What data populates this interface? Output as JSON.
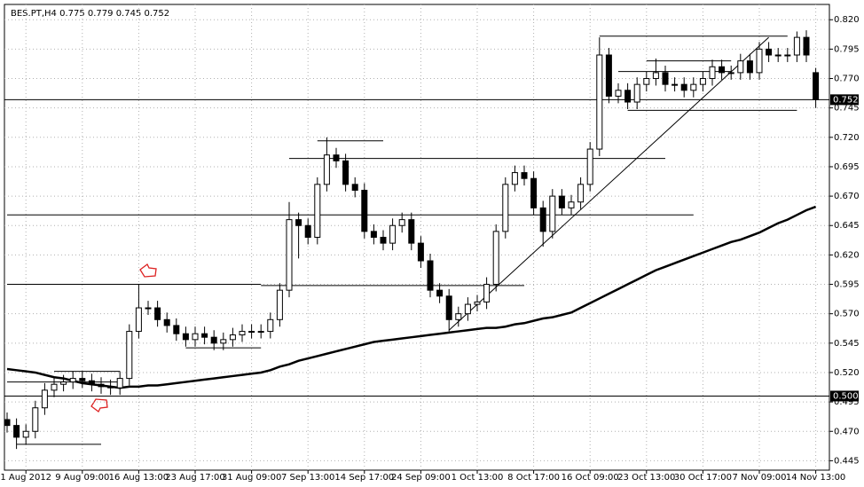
{
  "chart_data": {
    "type": "candlestick",
    "title": "BES.PT,H4  0.775 0.779 0.745 0.752",
    "categories": [
      null,
      null,
      "1 Aug 2012",
      null,
      null,
      null,
      null,
      null,
      "9 Aug 09:00",
      null,
      null,
      null,
      null,
      null,
      "16 Aug 13:00",
      null,
      null,
      null,
      null,
      null,
      "23 Aug 17:00",
      null,
      null,
      null,
      null,
      null,
      "31 Aug 09:00",
      null,
      null,
      null,
      null,
      null,
      "7 Sep 13:00",
      null,
      null,
      null,
      null,
      null,
      "14 Sep 17:00",
      null,
      null,
      null,
      null,
      null,
      "24 Sep 09:00",
      null,
      null,
      null,
      null,
      null,
      "1 Oct 13:00",
      null,
      null,
      null,
      null,
      null,
      "8 Oct 17:00",
      null,
      null,
      null,
      null,
      null,
      "16 Oct 09:00",
      null,
      null,
      null,
      null,
      null,
      "23 Oct 13:00",
      null,
      null,
      null,
      null,
      null,
      "30 Oct 17:00",
      null,
      null,
      null,
      null,
      null,
      "7 Nov 09:00",
      null,
      null,
      null,
      null,
      null,
      "14 Nov 13:00"
    ],
    "open": [
      0.48,
      0.475,
      0.465,
      0.47,
      0.49,
      0.505,
      0.51,
      0.512,
      0.515,
      0.513,
      0.51,
      0.508,
      0.507,
      0.515,
      0.555,
      0.575,
      0.575,
      0.565,
      0.56,
      0.553,
      0.548,
      0.553,
      0.55,
      0.545,
      0.548,
      0.552,
      0.555,
      0.555,
      0.555,
      0.565,
      0.59,
      0.65,
      0.645,
      0.635,
      0.68,
      0.705,
      0.7,
      0.68,
      0.675,
      0.64,
      0.635,
      0.63,
      0.645,
      0.65,
      0.63,
      0.615,
      0.59,
      0.585,
      0.565,
      0.57,
      0.578,
      0.58,
      0.595,
      0.64,
      0.68,
      0.69,
      0.685,
      0.66,
      0.64,
      0.67,
      0.66,
      0.665,
      0.68,
      0.71,
      0.79,
      0.755,
      0.76,
      0.75,
      0.765,
      0.77,
      0.775,
      0.765,
      0.765,
      0.76,
      0.765,
      0.77,
      0.78,
      0.775,
      0.775,
      0.785,
      0.775,
      0.795,
      0.79,
      0.79,
      0.79,
      0.805,
      0.775
    ],
    "high": [
      0.486,
      0.481,
      0.476,
      0.496,
      0.511,
      0.516,
      0.518,
      0.521,
      0.521,
      0.519,
      0.516,
      0.514,
      0.521,
      0.561,
      0.595,
      0.581,
      0.581,
      0.571,
      0.566,
      0.559,
      0.559,
      0.559,
      0.556,
      0.554,
      0.558,
      0.561,
      0.561,
      0.561,
      0.571,
      0.596,
      0.665,
      0.656,
      0.651,
      0.686,
      0.72,
      0.711,
      0.706,
      0.686,
      0.681,
      0.646,
      0.641,
      0.651,
      0.656,
      0.656,
      0.636,
      0.621,
      0.596,
      0.591,
      0.576,
      0.584,
      0.586,
      0.601,
      0.646,
      0.686,
      0.696,
      0.696,
      0.691,
      0.666,
      0.676,
      0.676,
      0.671,
      0.686,
      0.716,
      0.805,
      0.796,
      0.766,
      0.766,
      0.771,
      0.776,
      0.787,
      0.781,
      0.771,
      0.771,
      0.771,
      0.776,
      0.786,
      0.786,
      0.781,
      0.791,
      0.791,
      0.801,
      0.801,
      0.796,
      0.796,
      0.81,
      0.811,
      0.779
    ],
    "low": [
      0.469,
      0.455,
      0.459,
      0.464,
      0.484,
      0.499,
      0.504,
      0.506,
      0.507,
      0.504,
      0.502,
      0.501,
      0.501,
      0.509,
      0.549,
      0.569,
      0.559,
      0.554,
      0.547,
      0.542,
      0.542,
      0.544,
      0.539,
      0.539,
      0.542,
      0.546,
      0.549,
      0.549,
      0.549,
      0.559,
      0.584,
      0.617,
      0.629,
      0.629,
      0.674,
      0.694,
      0.674,
      0.669,
      0.634,
      0.629,
      0.624,
      0.624,
      0.639,
      0.624,
      0.609,
      0.584,
      0.579,
      0.555,
      0.559,
      0.564,
      0.572,
      0.574,
      0.589,
      0.634,
      0.674,
      0.679,
      0.654,
      0.627,
      0.634,
      0.654,
      0.654,
      0.659,
      0.674,
      0.704,
      0.749,
      0.749,
      0.744,
      0.744,
      0.759,
      0.764,
      0.759,
      0.759,
      0.754,
      0.754,
      0.759,
      0.764,
      0.769,
      0.769,
      0.769,
      0.769,
      0.769,
      0.784,
      0.784,
      0.784,
      0.784,
      0.784,
      0.745
    ],
    "close": [
      0.475,
      0.465,
      0.47,
      0.49,
      0.505,
      0.51,
      0.512,
      0.515,
      0.513,
      0.51,
      0.508,
      0.507,
      0.515,
      0.555,
      0.575,
      0.575,
      0.565,
      0.56,
      0.553,
      0.548,
      0.553,
      0.55,
      0.545,
      0.548,
      0.552,
      0.555,
      0.555,
      0.555,
      0.565,
      0.59,
      0.65,
      0.645,
      0.635,
      0.68,
      0.705,
      0.7,
      0.68,
      0.675,
      0.64,
      0.635,
      0.63,
      0.645,
      0.65,
      0.63,
      0.615,
      0.59,
      0.585,
      0.565,
      0.57,
      0.578,
      0.58,
      0.595,
      0.64,
      0.68,
      0.69,
      0.685,
      0.66,
      0.64,
      0.67,
      0.66,
      0.665,
      0.68,
      0.71,
      0.79,
      0.755,
      0.76,
      0.75,
      0.765,
      0.77,
      0.775,
      0.765,
      0.765,
      0.76,
      0.765,
      0.77,
      0.78,
      0.775,
      0.775,
      0.785,
      0.775,
      0.795,
      0.79,
      0.79,
      0.79,
      0.805,
      0.79,
      0.752
    ],
    "ma": {
      "color": "#000000",
      "values": [
        0.523,
        0.522,
        0.521,
        0.52,
        0.518,
        0.516,
        0.515,
        0.513,
        0.511,
        0.51,
        0.509,
        0.508,
        0.507,
        0.508,
        0.508,
        0.509,
        0.509,
        0.51,
        0.511,
        0.512,
        0.513,
        0.514,
        0.515,
        0.516,
        0.517,
        0.518,
        0.519,
        0.52,
        0.522,
        0.525,
        0.527,
        0.53,
        0.532,
        0.534,
        0.536,
        0.538,
        0.54,
        0.542,
        0.544,
        0.546,
        0.547,
        0.548,
        0.549,
        0.55,
        0.551,
        0.552,
        0.553,
        0.554,
        0.555,
        0.556,
        0.557,
        0.558,
        0.558,
        0.559,
        0.561,
        0.562,
        0.564,
        0.566,
        0.567,
        0.569,
        0.571,
        0.575,
        0.579,
        0.583,
        0.587,
        0.591,
        0.595,
        0.599,
        0.603,
        0.607,
        0.61,
        0.613,
        0.616,
        0.619,
        0.622,
        0.625,
        0.628,
        0.631,
        0.633,
        0.636,
        0.639,
        0.643,
        0.647,
        0.65,
        0.654,
        0.658,
        0.661
      ]
    },
    "segments": [
      {
        "x": [
          1,
          10
        ],
        "values": [
          0.459,
          0.459
        ]
      },
      {
        "x": [
          0,
          12
        ],
        "values": [
          0.512,
          0.512
        ]
      },
      {
        "x": [
          5,
          12
        ],
        "values": [
          0.521,
          0.521
        ]
      },
      {
        "x": [
          0,
          27
        ],
        "values": [
          0.595,
          0.595
        ]
      },
      {
        "x": [
          27,
          55
        ],
        "values": [
          0.594,
          0.594
        ]
      },
      {
        "x": [
          19,
          27
        ],
        "values": [
          0.541,
          0.541
        ]
      },
      {
        "x": [
          0,
          73
        ],
        "values": [
          0.654,
          0.654
        ]
      },
      {
        "x": [
          30,
          70
        ],
        "values": [
          0.702,
          0.702
        ]
      },
      {
        "x": [
          33,
          40
        ],
        "values": [
          0.717,
          0.717
        ]
      },
      {
        "x": [
          66,
          84
        ],
        "values": [
          0.743,
          0.743
        ]
      },
      {
        "x": [
          63,
          83
        ],
        "values": [
          0.806,
          0.806
        ]
      },
      {
        "x": [
          65,
          77
        ],
        "values": [
          0.776,
          0.776
        ]
      },
      {
        "x": [
          68,
          77
        ],
        "values": [
          0.785,
          0.785
        ]
      },
      {
        "x": [
          47,
          81
        ],
        "values": [
          0.556,
          0.805
        ]
      }
    ],
    "price_labels": [
      {
        "value": 0.752,
        "label": "0.752"
      },
      {
        "value": 0.5,
        "label": "0.500"
      }
    ],
    "bull_color": "#ffffff",
    "bear_color": "#000000",
    "ylim": [
      0.437,
      0.833
    ],
    "yticks": [
      {
        "value": 0.445,
        "label": "0.445"
      },
      {
        "value": 0.47,
        "label": "0.470"
      },
      {
        "value": 0.495,
        "label": "0.495"
      },
      {
        "value": 0.52,
        "label": "0.520"
      },
      {
        "value": 0.545,
        "label": "0.545"
      },
      {
        "value": 0.57,
        "label": "0.570"
      },
      {
        "value": 0.595,
        "label": "0.595"
      },
      {
        "value": 0.62,
        "label": "0.620"
      },
      {
        "value": 0.645,
        "label": "0.645"
      },
      {
        "value": 0.67,
        "label": "0.670"
      },
      {
        "value": 0.695,
        "label": "0.695"
      },
      {
        "value": 0.72,
        "label": "0.720"
      },
      {
        "value": 0.745,
        "label": "0.745"
      },
      {
        "value": 0.77,
        "label": "0.770"
      },
      {
        "value": 0.795,
        "label": "0.795"
      },
      {
        "value": 0.82,
        "label": "0.820"
      }
    ],
    "grid": true
  }
}
